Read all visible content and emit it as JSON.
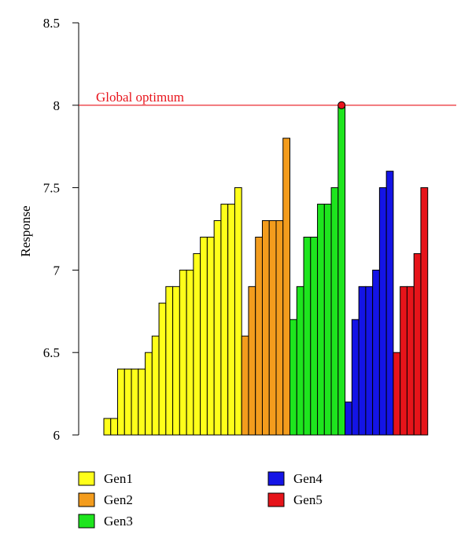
{
  "chart_data": {
    "type": "bar",
    "xlabel": "",
    "ylabel": "Response",
    "ylim": [
      6,
      8.5
    ],
    "yticks": [
      "6",
      "6.5",
      "7",
      "7.5",
      "8",
      "8.5"
    ],
    "grid": false,
    "legend_position": "bottom",
    "reference_line": {
      "label": "Global optimum",
      "value": 8,
      "color": "#e8141c"
    },
    "series": [
      {
        "name": "Gen1",
        "color": "#ffff1a",
        "values": [
          6.1,
          6.1,
          6.4,
          6.4,
          6.4,
          6.4,
          6.5,
          6.6,
          6.8,
          6.9,
          6.9,
          7.0,
          7.0,
          7.1,
          7.2,
          7.2,
          7.3,
          7.4,
          7.4,
          7.5
        ]
      },
      {
        "name": "Gen2",
        "color": "#f39c1d",
        "values": [
          6.6,
          6.9,
          7.2,
          7.3,
          7.3,
          7.3,
          7.8
        ]
      },
      {
        "name": "Gen3",
        "color": "#1ee51e",
        "values": [
          6.7,
          6.9,
          7.2,
          7.2,
          7.4,
          7.4,
          7.5,
          8.0
        ]
      },
      {
        "name": "Gen4",
        "color": "#1414e6",
        "values": [
          6.2,
          6.7,
          6.9,
          6.9,
          7.0,
          7.5,
          7.6
        ]
      },
      {
        "name": "Gen5",
        "color": "#e6141a",
        "values": [
          6.5,
          6.9,
          6.9,
          7.1,
          7.5
        ]
      }
    ],
    "optimum_marker": {
      "series": "Gen3",
      "value": 8.0
    }
  }
}
